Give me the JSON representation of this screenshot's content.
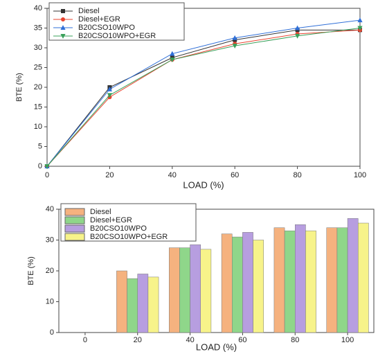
{
  "chart_data": [
    {
      "type": "line",
      "x_label": "LOAD (%)",
      "y_label": "BTE (%)",
      "x": [
        0,
        20,
        40,
        60,
        80,
        100
      ],
      "xlim": [
        0,
        100
      ],
      "xticks": [
        0,
        20,
        40,
        60,
        80,
        100
      ],
      "ylim": [
        0,
        40
      ],
      "yticks": [
        0,
        5,
        10,
        15,
        20,
        25,
        30,
        35,
        40
      ],
      "legend": "upper left",
      "series": [
        {
          "name": "Diesel",
          "color": "#333333",
          "marker": "square",
          "values": [
            0,
            20,
            27.5,
            32,
            34.5,
            34.5
          ]
        },
        {
          "name": "Diesel+EGR",
          "color": "#e8432f",
          "marker": "circle",
          "values": [
            0,
            17.5,
            27,
            31,
            33.5,
            34.5
          ]
        },
        {
          "name": "B20CSO10WPO",
          "color": "#2f6fd8",
          "marker": "triangle-up",
          "values": [
            0,
            19.5,
            28.5,
            32.5,
            35,
            37
          ]
        },
        {
          "name": "B20CSO10WPO+EGR",
          "color": "#3aa05a",
          "marker": "triangle-down",
          "values": [
            0,
            18,
            27,
            30.5,
            33,
            35
          ]
        }
      ]
    },
    {
      "type": "bar",
      "x_label": "LOAD (%)",
      "y_label": "BTE (%)",
      "categories": [
        "0",
        "20",
        "40",
        "60",
        "80",
        "100"
      ],
      "ylim": [
        0,
        40
      ],
      "yticks": [
        0,
        10,
        20,
        30,
        40
      ],
      "legend": "upper left",
      "series": [
        {
          "name": "Diesel",
          "color": "#f5b27f",
          "values": [
            null,
            20,
            27.5,
            32,
            34,
            34
          ]
        },
        {
          "name": "Diesel+EGR",
          "color": "#8fd68a",
          "values": [
            null,
            17.5,
            27.5,
            31,
            33,
            34
          ]
        },
        {
          "name": "B20CSO10WPO",
          "color": "#b79ee0",
          "values": [
            null,
            19,
            28.5,
            32.5,
            35,
            37
          ]
        },
        {
          "name": "B20CSO10WPO+EGR",
          "color": "#f7f38a",
          "values": [
            null,
            18,
            27,
            30,
            33,
            35.5
          ]
        }
      ]
    }
  ]
}
